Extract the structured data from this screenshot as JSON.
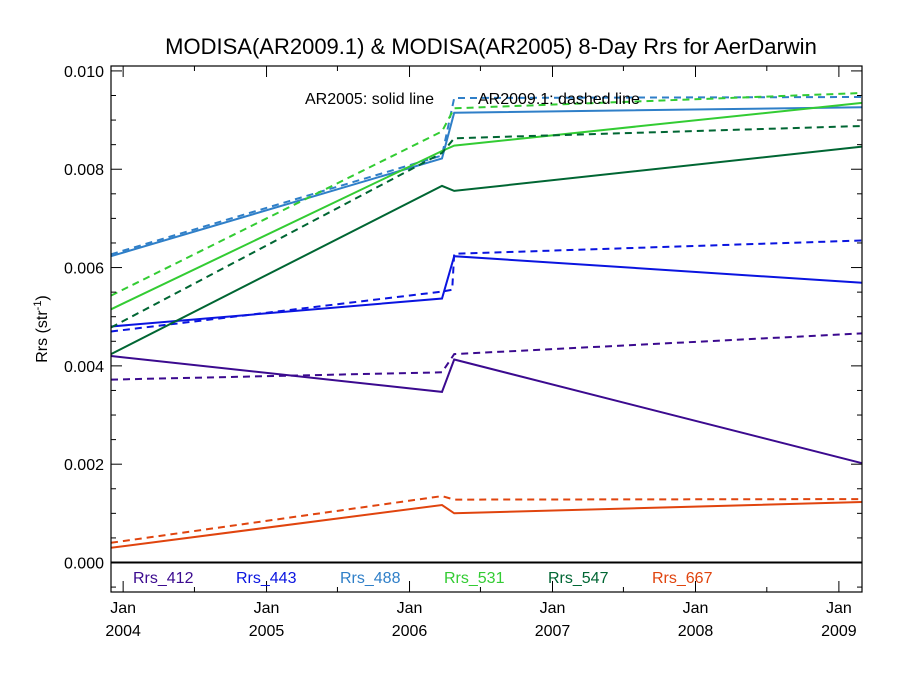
{
  "chart_data": {
    "type": "line",
    "title": "MODISA(AR2009.1) & MODISA(AR2005) 8-Day Rrs for AerDarwin",
    "xlabel": "",
    "ylabel": "Rrs (str",
    "ylabel_sup": "-1",
    "ylabel_close": ")",
    "annotation_solid": "AR2005: solid line",
    "annotation_dashed": "AR2009.1: dashed line",
    "xlim": [
      "2003-12-01",
      "2009-03-01"
    ],
    "ylim": [
      -0.0006,
      0.0101
    ],
    "grid": false,
    "legend_position": "bottom-inside",
    "x_ticks": [
      {
        "date": "2004-01-01",
        "line1": "Jan",
        "line2": "2004"
      },
      {
        "date": "2005-01-01",
        "line1": "Jan",
        "line2": "2005"
      },
      {
        "date": "2006-01-01",
        "line1": "Jan",
        "line2": "2006"
      },
      {
        "date": "2007-01-01",
        "line1": "Jan",
        "line2": "2007"
      },
      {
        "date": "2008-01-01",
        "line1": "Jan",
        "line2": "2008"
      },
      {
        "date": "2009-01-01",
        "line1": "Jan",
        "line2": "2009"
      }
    ],
    "y_ticks": [
      {
        "value": 0.0,
        "label": "0.000"
      },
      {
        "value": 0.002,
        "label": "0.002"
      },
      {
        "value": 0.004,
        "label": "0.004"
      },
      {
        "value": 0.006,
        "label": "0.006"
      },
      {
        "value": 0.008,
        "label": "0.008"
      },
      {
        "value": 0.01,
        "label": "0.010"
      }
    ],
    "zero_line": 0.0,
    "series": [
      {
        "name": "Rrs_412",
        "color": "#3b0a8f",
        "solid": {
          "x": [
            "2003-12-01",
            "2006-03-25",
            "2006-04-25",
            "2009-03-01"
          ],
          "y": [
            0.0042,
            0.00347,
            0.00413,
            0.00202
          ]
        },
        "dashed": {
          "x": [
            "2003-12-01",
            "2006-03-25",
            "2006-04-25",
            "2009-03-01"
          ],
          "y": [
            0.00372,
            0.00387,
            0.00424,
            0.00466
          ]
        }
      },
      {
        "name": "Rrs_443",
        "color": "#0a14e0",
        "solid": {
          "x": [
            "2003-12-01",
            "2006-03-25",
            "2006-04-25",
            "2009-03-01"
          ],
          "y": [
            0.0048,
            0.00537,
            0.00623,
            0.00569
          ]
        },
        "dashed": {
          "x": [
            "2003-12-01",
            "2006-03-25",
            "2006-04-20",
            "2006-04-25",
            "2009-03-01"
          ],
          "y": [
            0.0047,
            0.00551,
            0.00555,
            0.00628,
            0.00655
          ]
        }
      },
      {
        "name": "Rrs_488",
        "color": "#2f7fc8",
        "solid": {
          "x": [
            "2003-12-01",
            "2006-03-25",
            "2006-04-25",
            "2009-03-01"
          ],
          "y": [
            0.00623,
            0.00822,
            0.00915,
            0.00926
          ]
        },
        "dashed": {
          "x": [
            "2003-12-01",
            "2006-03-25",
            "2006-04-25",
            "2009-03-01"
          ],
          "y": [
            0.00627,
            0.00828,
            0.00945,
            0.00947
          ]
        }
      },
      {
        "name": "Rrs_531",
        "color": "#33cc33",
        "solid": {
          "x": [
            "2003-12-01",
            "2006-03-25",
            "2006-04-25",
            "2009-03-01"
          ],
          "y": [
            0.00515,
            0.00837,
            0.00848,
            0.00935
          ]
        },
        "dashed": {
          "x": [
            "2003-12-01",
            "2006-03-25",
            "2006-04-25",
            "2009-03-01"
          ],
          "y": [
            0.00543,
            0.00877,
            0.00924,
            0.00955
          ]
        }
      },
      {
        "name": "Rrs_547",
        "color": "#006633",
        "solid": {
          "x": [
            "2003-12-01",
            "2006-03-25",
            "2006-04-25",
            "2009-03-01"
          ],
          "y": [
            0.00424,
            0.00766,
            0.00756,
            0.00846
          ]
        },
        "dashed": {
          "x": [
            "2003-12-01",
            "2006-03-25",
            "2006-04-25",
            "2009-03-01"
          ],
          "y": [
            0.00478,
            0.00833,
            0.00863,
            0.00888
          ]
        }
      },
      {
        "name": "Rrs_667",
        "color": "#e0440e",
        "solid": {
          "x": [
            "2003-12-01",
            "2006-03-25",
            "2006-04-25",
            "2009-03-01"
          ],
          "y": [
            0.0003,
            0.00117,
            0.001,
            0.00123
          ]
        },
        "dashed": {
          "x": [
            "2003-12-01",
            "2006-03-25",
            "2006-04-25",
            "2009-03-01"
          ],
          "y": [
            0.0004,
            0.00135,
            0.00128,
            0.00129
          ]
        }
      }
    ]
  }
}
